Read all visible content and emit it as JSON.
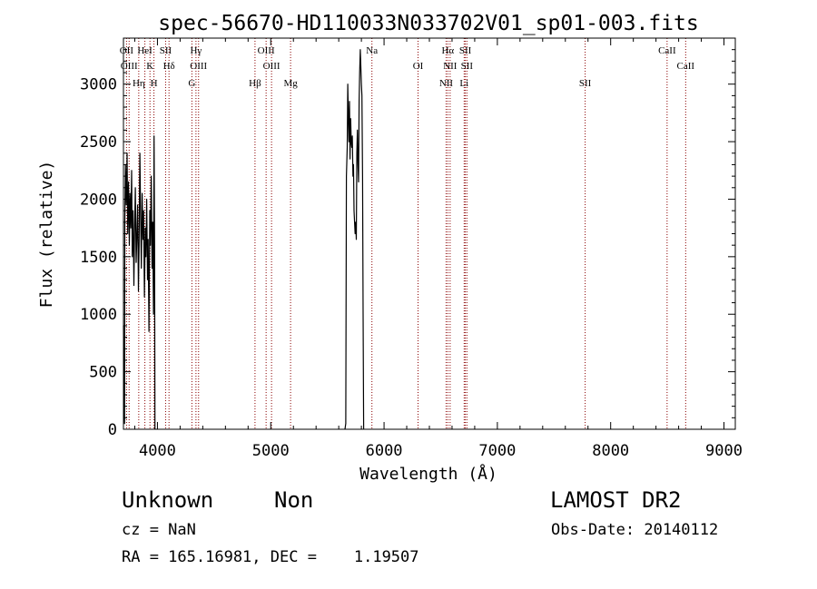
{
  "chart_data": {
    "type": "line",
    "title": "spec-56670-HD110033N033702V01_sp01-003.fits",
    "xlabel": "Wavelength (Å)",
    "ylabel": "Flux (relative)",
    "xlim": [
      3700,
      9100
    ],
    "ylim": [
      0,
      3400
    ],
    "xticks": [
      4000,
      5000,
      6000,
      7000,
      8000,
      9000
    ],
    "yticks": [
      0,
      500,
      1000,
      1500,
      2000,
      2500,
      3000
    ],
    "xtick_labels": [
      "4000",
      "5000",
      "6000",
      "7000",
      "8000",
      "9000"
    ],
    "ytick_labels": [
      "0",
      "500",
      "1000",
      "1500",
      "2000",
      "2500",
      "3000"
    ],
    "grid": false,
    "line_color": "#000000",
    "marker_color": "#8b0000",
    "series": [
      {
        "segments": [
          [
            [
              3700,
              900
            ],
            [
              3705,
              300
            ],
            [
              3710,
              50
            ],
            [
              3712,
              1800
            ],
            [
              3718,
              2300
            ],
            [
              3725,
              1950
            ],
            [
              3732,
              2400
            ],
            [
              3738,
              1700
            ],
            [
              3745,
              2150
            ],
            [
              3752,
              1600
            ],
            [
              3758,
              2050
            ],
            [
              3765,
              1750
            ],
            [
              3772,
              2250
            ],
            [
              3778,
              1500
            ],
            [
              3785,
              1900
            ],
            [
              3792,
              1250
            ],
            [
              3798,
              1700
            ],
            [
              3805,
              2100
            ],
            [
              3812,
              1450
            ],
            [
              3818,
              1650
            ],
            [
              3825,
              1950
            ],
            [
              3832,
              1200
            ],
            [
              3838,
              1600
            ],
            [
              3845,
              2400
            ],
            [
              3852,
              1800
            ],
            [
              3858,
              1400
            ],
            [
              3865,
              2050
            ],
            [
              3872,
              1650
            ],
            [
              3878,
              1900
            ],
            [
              3885,
              1150
            ],
            [
              3892,
              1750
            ],
            [
              3898,
              1500
            ],
            [
              3905,
              2000
            ],
            [
              3912,
              1300
            ],
            [
              3918,
              1650
            ],
            [
              3925,
              850
            ],
            [
              3932,
              1900
            ],
            [
              3938,
              1600
            ],
            [
              3945,
              2200
            ],
            [
              3952,
              1400
            ],
            [
              3958,
              1800
            ],
            [
              3965,
              1000
            ],
            [
              3970,
              2550
            ],
            [
              3975,
              1600
            ],
            [
              3978,
              0
            ]
          ],
          [
            [
              5655,
              0
            ],
            [
              5662,
              50
            ],
            [
              5668,
              2200
            ],
            [
              5675,
              2450
            ],
            [
              5680,
              3000
            ],
            [
              5685,
              2700
            ],
            [
              5690,
              2500
            ],
            [
              5695,
              2850
            ],
            [
              5700,
              2350
            ],
            [
              5705,
              2700
            ],
            [
              5710,
              2500
            ],
            [
              5715,
              2450
            ],
            [
              5720,
              2550
            ],
            [
              5725,
              2200
            ],
            [
              5730,
              2300
            ],
            [
              5735,
              1900
            ],
            [
              5740,
              1800
            ],
            [
              5745,
              1700
            ],
            [
              5750,
              1800
            ],
            [
              5755,
              1650
            ],
            [
              5760,
              2400
            ],
            [
              5765,
              2600
            ],
            [
              5770,
              2300
            ],
            [
              5775,
              2150
            ],
            [
              5780,
              2850
            ],
            [
              5785,
              3100
            ],
            [
              5790,
              3300
            ],
            [
              5795,
              3150
            ],
            [
              5800,
              3000
            ],
            [
              5805,
              2900
            ],
            [
              5810,
              2200
            ],
            [
              5815,
              1000
            ],
            [
              5820,
              0
            ]
          ]
        ]
      }
    ],
    "lines": [
      {
        "wave": 3727,
        "label": "OII"
      },
      {
        "wave": 3750,
        "label": "OIII"
      },
      {
        "wave": 3835,
        "label": "Hη"
      },
      {
        "wave": 3889,
        "label": "HeI"
      },
      {
        "wave": 3934,
        "label": "K"
      },
      {
        "wave": 3969,
        "label": "H"
      },
      {
        "wave": 4072,
        "label": "SII"
      },
      {
        "wave": 4102,
        "label": "Hδ"
      },
      {
        "wave": 4304,
        "label": "G"
      },
      {
        "wave": 4340,
        "label": "Hγ"
      },
      {
        "wave": 4363,
        "label": "OIII"
      },
      {
        "wave": 4861,
        "label": "Hβ"
      },
      {
        "wave": 4959,
        "label": "OIII"
      },
      {
        "wave": 5007,
        "label": "OIII"
      },
      {
        "wave": 5175,
        "label": "Mg"
      },
      {
        "wave": 5893,
        "label": "Na"
      },
      {
        "wave": 6300,
        "label": "OI"
      },
      {
        "wave": 6548,
        "label": "NII"
      },
      {
        "wave": 6563,
        "label": "Hα"
      },
      {
        "wave": 6583,
        "label": "NII"
      },
      {
        "wave": 6707,
        "label": "Li"
      },
      {
        "wave": 6717,
        "label": "SII"
      },
      {
        "wave": 6731,
        "label": "SII"
      },
      {
        "wave": 7775,
        "label": "SII"
      },
      {
        "wave": 8498,
        "label": "CaII"
      },
      {
        "wave": 8662,
        "label": "CaII"
      }
    ]
  },
  "info": {
    "class": "Unknown",
    "subclass": "Non",
    "survey": "LAMOST DR2",
    "cz": "cz = NaN",
    "obs_date": "Obs-Date: 20140112",
    "coords": "RA = 165.16981, DEC =    1.19507"
  }
}
